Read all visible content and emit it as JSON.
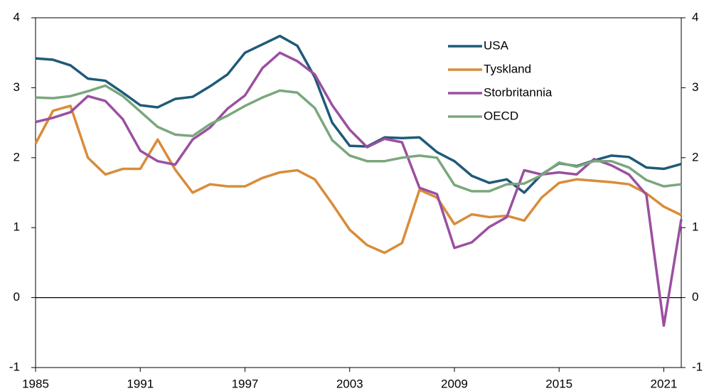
{
  "chart_data": {
    "type": "line",
    "x": [
      1985,
      1986,
      1987,
      1988,
      1989,
      1990,
      1991,
      1992,
      1993,
      1994,
      1995,
      1996,
      1997,
      1998,
      1999,
      2000,
      2001,
      2002,
      2003,
      2004,
      2005,
      2006,
      2007,
      2008,
      2009,
      2010,
      2011,
      2012,
      2013,
      2014,
      2015,
      2016,
      2017,
      2018,
      2019,
      2020,
      2021,
      2022
    ],
    "xlim": [
      1985,
      2022
    ],
    "xticks": [
      1985,
      1991,
      1997,
      2003,
      2009,
      2015,
      2021
    ],
    "ylim": [
      -1,
      4
    ],
    "yticks": [
      -1,
      0,
      1,
      2,
      3,
      4
    ],
    "legend": "upper right",
    "series": [
      {
        "name": "USA",
        "color": "#1f5a78",
        "values": [
          3.42,
          3.4,
          3.32,
          3.13,
          3.1,
          2.93,
          2.75,
          2.72,
          2.84,
          2.87,
          3.02,
          3.19,
          3.5,
          3.62,
          3.74,
          3.6,
          3.15,
          2.5,
          2.17,
          2.16,
          2.29,
          2.28,
          2.29,
          2.08,
          1.95,
          1.74,
          1.64,
          1.69,
          1.5,
          1.76,
          1.92,
          1.88,
          1.96,
          2.03,
          2.01,
          1.86,
          1.84,
          1.91
        ]
      },
      {
        "name": "Tyskland",
        "color": "#d98c3a",
        "values": [
          2.2,
          2.67,
          2.74,
          2.0,
          1.76,
          1.84,
          1.84,
          2.26,
          1.83,
          1.5,
          1.62,
          1.59,
          1.59,
          1.71,
          1.79,
          1.82,
          1.69,
          1.34,
          0.97,
          0.75,
          0.64,
          0.78,
          1.54,
          1.43,
          1.05,
          1.19,
          1.15,
          1.17,
          1.1,
          1.43,
          1.64,
          1.69,
          1.67,
          1.65,
          1.62,
          1.49,
          1.3,
          1.18
        ]
      },
      {
        "name": "Storbritannia",
        "color": "#9b4fa0",
        "values": [
          2.51,
          2.57,
          2.65,
          2.88,
          2.81,
          2.55,
          2.1,
          1.95,
          1.9,
          2.26,
          2.43,
          2.7,
          2.89,
          3.28,
          3.5,
          3.38,
          3.19,
          2.75,
          2.4,
          2.15,
          2.27,
          2.22,
          1.57,
          1.48,
          0.71,
          0.79,
          1.01,
          1.15,
          1.82,
          1.76,
          1.79,
          1.76,
          1.98,
          1.89,
          1.76,
          1.47,
          -0.4,
          1.12
        ]
      },
      {
        "name": "OECD",
        "color": "#7aa77d",
        "values": [
          2.86,
          2.85,
          2.88,
          2.95,
          3.03,
          2.88,
          2.66,
          2.44,
          2.33,
          2.31,
          2.48,
          2.6,
          2.74,
          2.86,
          2.96,
          2.93,
          2.71,
          2.25,
          2.03,
          1.95,
          1.95,
          2.0,
          2.03,
          2.0,
          1.61,
          1.52,
          1.52,
          1.62,
          1.63,
          1.75,
          1.93,
          1.87,
          1.95,
          1.95,
          1.86,
          1.68,
          1.59,
          1.62
        ]
      }
    ]
  }
}
